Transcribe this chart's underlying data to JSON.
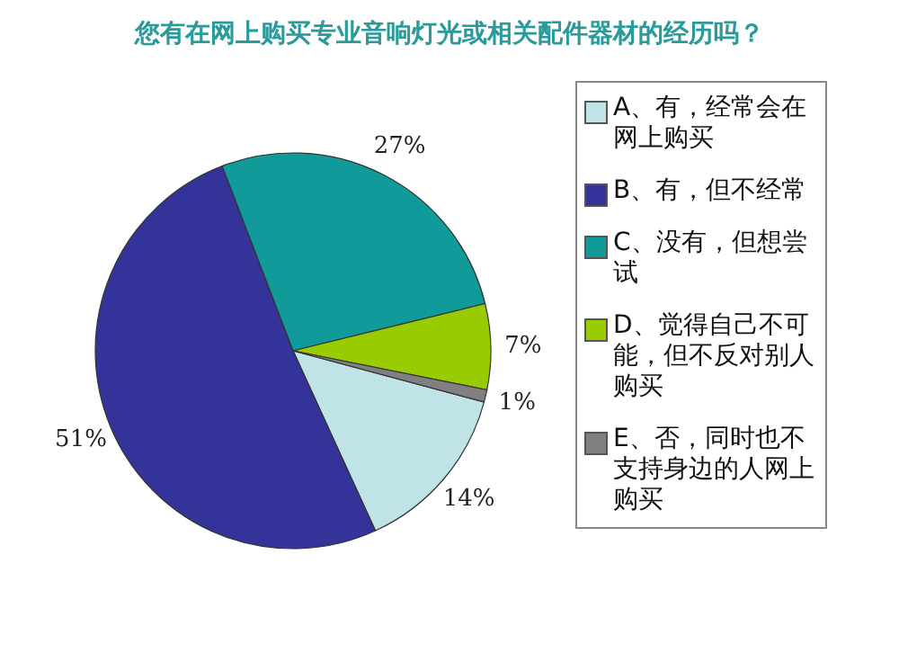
{
  "chart_data": {
    "type": "pie",
    "title": "您有在网上购买专业音响灯光或相关配件器材的经历吗？",
    "categories": [
      "A、有，经常会在网上购买",
      "B、有，但不经常",
      "C、没有，但想尝试",
      "D、觉得自己不可能，但不反对别人购买",
      "E、否，同时也不支持身边的人网上购买"
    ],
    "values": [
      14,
      51,
      27,
      7,
      1
    ],
    "colors": [
      "#bfe3e6",
      "#333399",
      "#109a99",
      "#99cc00",
      "#808080"
    ],
    "value_labels": [
      "14%",
      "51%",
      "27%",
      "7%",
      "1%"
    ],
    "legend": "right"
  }
}
